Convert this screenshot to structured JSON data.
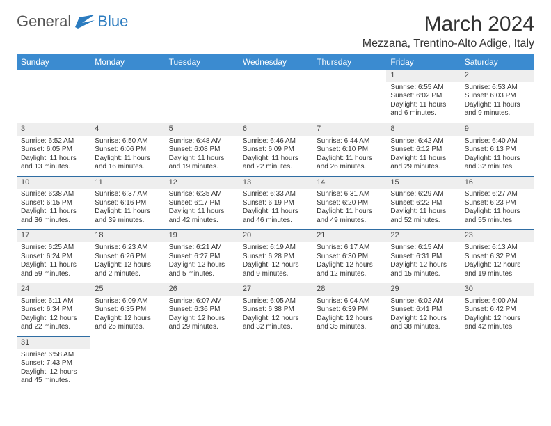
{
  "logo": {
    "general": "General",
    "blue": "Blue"
  },
  "title": "March 2024",
  "location": "Mezzana, Trentino-Alto Adige, Italy",
  "colors": {
    "header_bg": "#3b8bd0",
    "row_sep": "#2f6da3",
    "daynum_bg": "#eeeeee"
  },
  "day_headers": [
    "Sunday",
    "Monday",
    "Tuesday",
    "Wednesday",
    "Thursday",
    "Friday",
    "Saturday"
  ],
  "weeks": [
    [
      {
        "n": "",
        "empty": true
      },
      {
        "n": "",
        "empty": true
      },
      {
        "n": "",
        "empty": true
      },
      {
        "n": "",
        "empty": true
      },
      {
        "n": "",
        "empty": true
      },
      {
        "n": "1",
        "sr": "Sunrise: 6:55 AM",
        "ss": "Sunset: 6:02 PM",
        "dl": "Daylight: 11 hours and 6 minutes."
      },
      {
        "n": "2",
        "sr": "Sunrise: 6:53 AM",
        "ss": "Sunset: 6:03 PM",
        "dl": "Daylight: 11 hours and 9 minutes."
      }
    ],
    [
      {
        "n": "3",
        "sr": "Sunrise: 6:52 AM",
        "ss": "Sunset: 6:05 PM",
        "dl": "Daylight: 11 hours and 13 minutes."
      },
      {
        "n": "4",
        "sr": "Sunrise: 6:50 AM",
        "ss": "Sunset: 6:06 PM",
        "dl": "Daylight: 11 hours and 16 minutes."
      },
      {
        "n": "5",
        "sr": "Sunrise: 6:48 AM",
        "ss": "Sunset: 6:08 PM",
        "dl": "Daylight: 11 hours and 19 minutes."
      },
      {
        "n": "6",
        "sr": "Sunrise: 6:46 AM",
        "ss": "Sunset: 6:09 PM",
        "dl": "Daylight: 11 hours and 22 minutes."
      },
      {
        "n": "7",
        "sr": "Sunrise: 6:44 AM",
        "ss": "Sunset: 6:10 PM",
        "dl": "Daylight: 11 hours and 26 minutes."
      },
      {
        "n": "8",
        "sr": "Sunrise: 6:42 AM",
        "ss": "Sunset: 6:12 PM",
        "dl": "Daylight: 11 hours and 29 minutes."
      },
      {
        "n": "9",
        "sr": "Sunrise: 6:40 AM",
        "ss": "Sunset: 6:13 PM",
        "dl": "Daylight: 11 hours and 32 minutes."
      }
    ],
    [
      {
        "n": "10",
        "sr": "Sunrise: 6:38 AM",
        "ss": "Sunset: 6:15 PM",
        "dl": "Daylight: 11 hours and 36 minutes."
      },
      {
        "n": "11",
        "sr": "Sunrise: 6:37 AM",
        "ss": "Sunset: 6:16 PM",
        "dl": "Daylight: 11 hours and 39 minutes."
      },
      {
        "n": "12",
        "sr": "Sunrise: 6:35 AM",
        "ss": "Sunset: 6:17 PM",
        "dl": "Daylight: 11 hours and 42 minutes."
      },
      {
        "n": "13",
        "sr": "Sunrise: 6:33 AM",
        "ss": "Sunset: 6:19 PM",
        "dl": "Daylight: 11 hours and 46 minutes."
      },
      {
        "n": "14",
        "sr": "Sunrise: 6:31 AM",
        "ss": "Sunset: 6:20 PM",
        "dl": "Daylight: 11 hours and 49 minutes."
      },
      {
        "n": "15",
        "sr": "Sunrise: 6:29 AM",
        "ss": "Sunset: 6:22 PM",
        "dl": "Daylight: 11 hours and 52 minutes."
      },
      {
        "n": "16",
        "sr": "Sunrise: 6:27 AM",
        "ss": "Sunset: 6:23 PM",
        "dl": "Daylight: 11 hours and 55 minutes."
      }
    ],
    [
      {
        "n": "17",
        "sr": "Sunrise: 6:25 AM",
        "ss": "Sunset: 6:24 PM",
        "dl": "Daylight: 11 hours and 59 minutes."
      },
      {
        "n": "18",
        "sr": "Sunrise: 6:23 AM",
        "ss": "Sunset: 6:26 PM",
        "dl": "Daylight: 12 hours and 2 minutes."
      },
      {
        "n": "19",
        "sr": "Sunrise: 6:21 AM",
        "ss": "Sunset: 6:27 PM",
        "dl": "Daylight: 12 hours and 5 minutes."
      },
      {
        "n": "20",
        "sr": "Sunrise: 6:19 AM",
        "ss": "Sunset: 6:28 PM",
        "dl": "Daylight: 12 hours and 9 minutes."
      },
      {
        "n": "21",
        "sr": "Sunrise: 6:17 AM",
        "ss": "Sunset: 6:30 PM",
        "dl": "Daylight: 12 hours and 12 minutes."
      },
      {
        "n": "22",
        "sr": "Sunrise: 6:15 AM",
        "ss": "Sunset: 6:31 PM",
        "dl": "Daylight: 12 hours and 15 minutes."
      },
      {
        "n": "23",
        "sr": "Sunrise: 6:13 AM",
        "ss": "Sunset: 6:32 PM",
        "dl": "Daylight: 12 hours and 19 minutes."
      }
    ],
    [
      {
        "n": "24",
        "sr": "Sunrise: 6:11 AM",
        "ss": "Sunset: 6:34 PM",
        "dl": "Daylight: 12 hours and 22 minutes."
      },
      {
        "n": "25",
        "sr": "Sunrise: 6:09 AM",
        "ss": "Sunset: 6:35 PM",
        "dl": "Daylight: 12 hours and 25 minutes."
      },
      {
        "n": "26",
        "sr": "Sunrise: 6:07 AM",
        "ss": "Sunset: 6:36 PM",
        "dl": "Daylight: 12 hours and 29 minutes."
      },
      {
        "n": "27",
        "sr": "Sunrise: 6:05 AM",
        "ss": "Sunset: 6:38 PM",
        "dl": "Daylight: 12 hours and 32 minutes."
      },
      {
        "n": "28",
        "sr": "Sunrise: 6:04 AM",
        "ss": "Sunset: 6:39 PM",
        "dl": "Daylight: 12 hours and 35 minutes."
      },
      {
        "n": "29",
        "sr": "Sunrise: 6:02 AM",
        "ss": "Sunset: 6:41 PM",
        "dl": "Daylight: 12 hours and 38 minutes."
      },
      {
        "n": "30",
        "sr": "Sunrise: 6:00 AM",
        "ss": "Sunset: 6:42 PM",
        "dl": "Daylight: 12 hours and 42 minutes."
      }
    ],
    [
      {
        "n": "31",
        "sr": "Sunrise: 6:58 AM",
        "ss": "Sunset: 7:43 PM",
        "dl": "Daylight: 12 hours and 45 minutes."
      },
      {
        "n": "",
        "empty": true
      },
      {
        "n": "",
        "empty": true
      },
      {
        "n": "",
        "empty": true
      },
      {
        "n": "",
        "empty": true
      },
      {
        "n": "",
        "empty": true
      },
      {
        "n": "",
        "empty": true
      }
    ]
  ]
}
